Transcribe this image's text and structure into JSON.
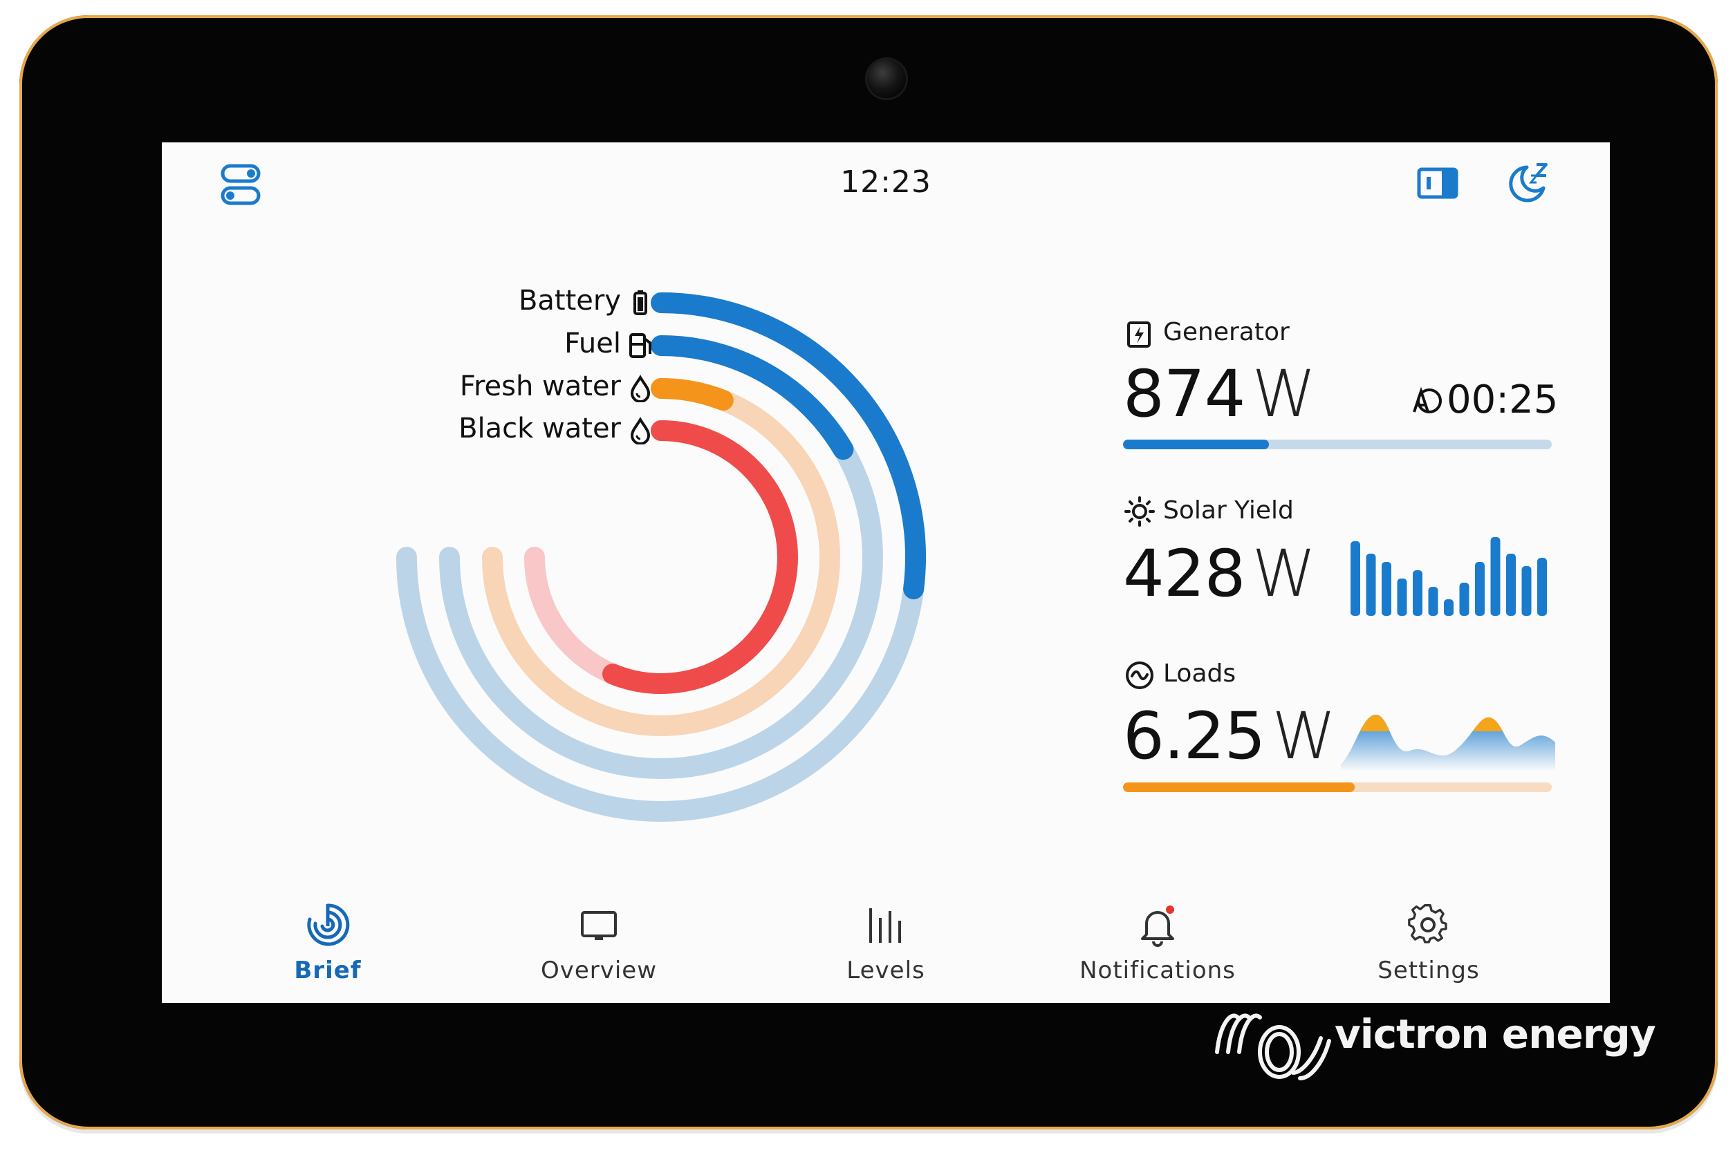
{
  "header": {
    "clock": "12:23"
  },
  "icons": {
    "top_left": "toggle-switches-icon",
    "top_right_1": "sidebar-panel-icon",
    "top_right_2": "sleep-moon-icon"
  },
  "rings": [
    {
      "label": "Battery",
      "icon": "battery-icon",
      "color": "#1a7bcc",
      "track": "#bcd4e8",
      "fraction": 0.36
    },
    {
      "label": "Fuel",
      "icon": "fuel-pump-icon",
      "color": "#1a7bcc",
      "track": "#bcd4e8",
      "fraction": 0.22
    },
    {
      "label": "Fresh water",
      "icon": "water-drop-icon",
      "color": "#f4941a",
      "track": "#f7d5b6",
      "fraction": 0.08
    },
    {
      "label": "Black water",
      "icon": "water-drop-icon",
      "color": "#f04b4b",
      "track": "#f9c7c7",
      "fraction": 0.75
    }
  ],
  "cards": {
    "generator": {
      "title": "Generator",
      "value": "874",
      "unit": "W",
      "timer": "00:25",
      "progress": 0.34,
      "color": "#1a7bcc",
      "track": "#c6d9ea"
    },
    "solar": {
      "title": "Solar Yield",
      "value": "428",
      "unit": "W",
      "color": "#1a7bcc",
      "bars": [
        0.9,
        0.75,
        0.65,
        0.45,
        0.55,
        0.35,
        0.2,
        0.4,
        0.65,
        0.95,
        0.75,
        0.6,
        0.7
      ]
    },
    "loads": {
      "title": "Loads",
      "value": "6.25",
      "unit": "W",
      "progress": 0.54,
      "color": "#f4941a",
      "track": "#f7dcc2"
    }
  },
  "nav": [
    {
      "label": "Brief",
      "icon": "brief-gauge-icon",
      "active": true
    },
    {
      "label": "Overview",
      "icon": "overview-monitor-icon",
      "active": false
    },
    {
      "label": "Levels",
      "icon": "levels-bars-icon",
      "active": false
    },
    {
      "label": "Notifications",
      "icon": "bell-icon",
      "active": false
    },
    {
      "label": "Settings",
      "icon": "gear-icon",
      "active": false
    }
  ],
  "brand": {
    "name": "victron energy"
  },
  "colors": {
    "accent": "#1669b8",
    "background": "#fbfbfb",
    "bezel": "#050505"
  }
}
